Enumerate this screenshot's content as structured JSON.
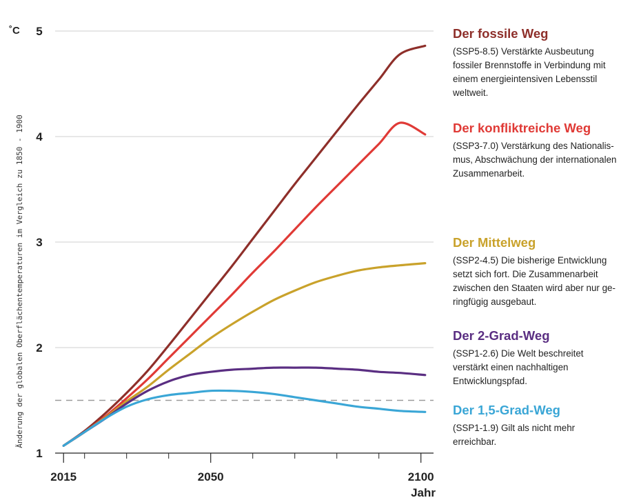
{
  "chart_data": {
    "type": "line",
    "unit": "˚C",
    "ylabel": "Änderung der globalen Oberflächentemperaturen im Vergleich zu 1850 - 1900",
    "xlabel": "Jahr",
    "xlim": [
      2013,
      2103
    ],
    "ylim": [
      1,
      5
    ],
    "x_tick_labels": [
      {
        "x": 2015,
        "label": "2015"
      },
      {
        "x": 2050,
        "label": "2050"
      },
      {
        "x": 2100,
        "label": "2100"
      }
    ],
    "x_minor_ticks": [
      2020,
      2030,
      2040,
      2060,
      2070,
      2080,
      2090
    ],
    "y_ticks": [
      1,
      2,
      3,
      4,
      5
    ],
    "grid": true,
    "reference_line": {
      "y": 1.5,
      "style": "dashed"
    },
    "x": [
      2015,
      2020,
      2025,
      2030,
      2035,
      2040,
      2045,
      2050,
      2055,
      2060,
      2065,
      2070,
      2075,
      2080,
      2085,
      2090,
      2095,
      2101
    ],
    "series": [
      {
        "name": "Der fossile Weg",
        "color": "#8e2f2a",
        "values": [
          1.07,
          1.21,
          1.38,
          1.57,
          1.78,
          2.02,
          2.27,
          2.52,
          2.77,
          3.03,
          3.29,
          3.55,
          3.8,
          4.05,
          4.3,
          4.54,
          4.78,
          4.86
        ]
      },
      {
        "name": "Der konfliktreiche Weg",
        "color": "#e03a36",
        "values": [
          1.07,
          1.2,
          1.35,
          1.52,
          1.7,
          1.9,
          2.1,
          2.3,
          2.5,
          2.71,
          2.91,
          3.12,
          3.33,
          3.53,
          3.73,
          3.93,
          4.13,
          4.02
        ]
      },
      {
        "name": "Der Mittelweg",
        "color": "#c9a22b",
        "values": [
          1.07,
          1.2,
          1.34,
          1.49,
          1.63,
          1.79,
          1.94,
          2.09,
          2.22,
          2.34,
          2.45,
          2.54,
          2.62,
          2.68,
          2.73,
          2.76,
          2.78,
          2.8
        ]
      },
      {
        "name": "Der 2-Grad-Weg",
        "color": "#5a2e82",
        "values": [
          1.07,
          1.2,
          1.33,
          1.47,
          1.59,
          1.68,
          1.74,
          1.77,
          1.79,
          1.8,
          1.81,
          1.81,
          1.81,
          1.8,
          1.79,
          1.77,
          1.76,
          1.74
        ]
      },
      {
        "name": "Der 1,5-Grad-Weg",
        "color": "#3aa6d6",
        "values": [
          1.07,
          1.2,
          1.33,
          1.44,
          1.51,
          1.55,
          1.57,
          1.59,
          1.59,
          1.58,
          1.56,
          1.53,
          1.5,
          1.47,
          1.44,
          1.42,
          1.4,
          1.39
        ]
      }
    ],
    "legend": [
      {
        "title": "Der fossile Weg",
        "color": "#8e2f2a",
        "lines": [
          "(SSP5-8.5) Verstärkte Ausbeutung",
          "fossiler Brennstoffe in Verbindung mit",
          "einem energieintensiven Lebensstil",
          "weltweit."
        ]
      },
      {
        "title": "Der konfliktreiche Weg",
        "color": "#e03a36",
        "lines": [
          "(SSP3-7.0) Verstärkung des Nationalis-",
          "mus, Abschwächung der internationalen",
          "Zusammenarbeit."
        ]
      },
      {
        "title": "Der Mittelweg",
        "color": "#c9a22b",
        "lines": [
          "(SSP2-4.5) Die bisherige Entwicklung",
          "setzt sich fort. Die Zusammenarbeit",
          "zwischen den Staaten wird aber nur ge-",
          "ringfügig ausgebaut."
        ]
      },
      {
        "title": "Der 2-Grad-Weg",
        "color": "#5a2e82",
        "lines": [
          "(SSP1-2.6) Die Welt beschreitet",
          "verstärkt einen nachhaltigen",
          "Entwicklungspfad."
        ]
      },
      {
        "title": "Der 1,5-Grad-Weg",
        "color": "#3aa6d6",
        "lines": [
          "(SSP1-1.9) Gilt als nicht mehr",
          "erreichbar."
        ]
      }
    ]
  }
}
